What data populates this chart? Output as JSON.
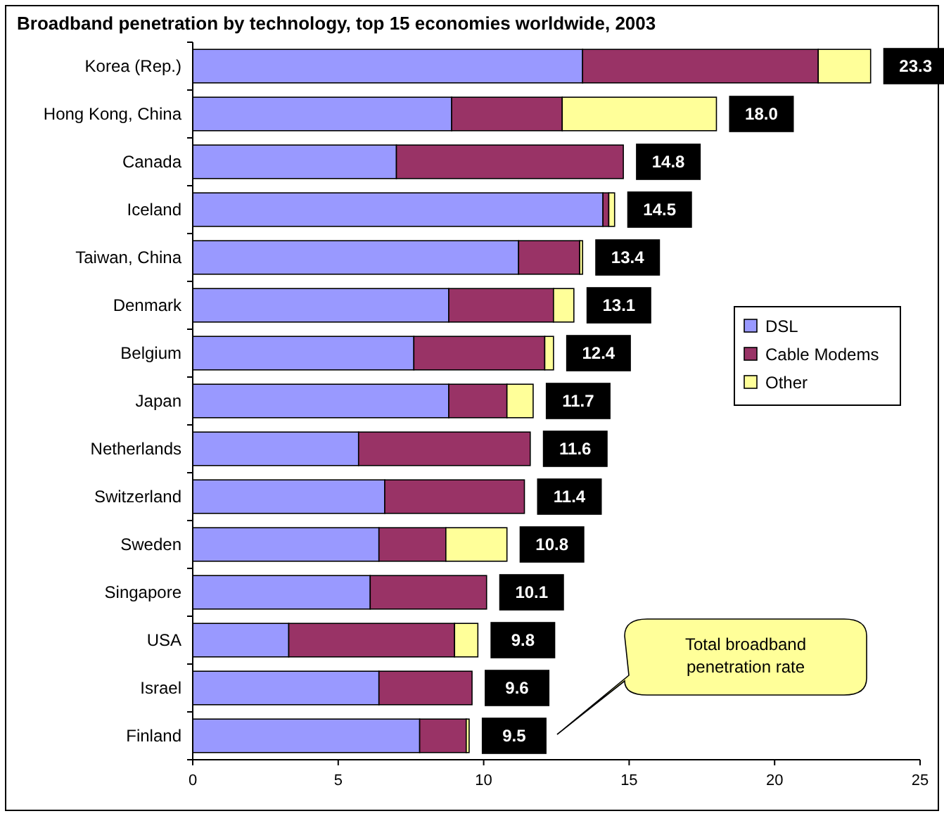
{
  "chart_data": {
    "type": "bar",
    "title": "Broadband penetration by technology, top 15 economies worldwide, 2003",
    "orientation": "horizontal",
    "stacked": true,
    "categories": [
      "Korea (Rep.)",
      "Hong Kong, China",
      "Canada",
      "Iceland",
      "Taiwan, China",
      "Denmark",
      "Belgium",
      "Japan",
      "Netherlands",
      "Switzerland",
      "Sweden",
      "Singapore",
      "USA",
      "Israel",
      "Finland"
    ],
    "series": [
      {
        "name": "DSL",
        "color": "#9999ff",
        "values": [
          13.4,
          8.9,
          7.0,
          14.1,
          11.2,
          8.8,
          7.6,
          8.8,
          5.7,
          6.6,
          6.4,
          6.1,
          3.3,
          6.4,
          7.8
        ]
      },
      {
        "name": "Cable Modems",
        "color": "#993366",
        "values": [
          8.1,
          3.8,
          7.8,
          0.2,
          2.1,
          3.6,
          4.5,
          2.0,
          5.9,
          4.8,
          2.3,
          4.0,
          5.7,
          3.2,
          1.6
        ]
      },
      {
        "name": "Other",
        "color": "#ffff99",
        "values": [
          1.8,
          5.3,
          0,
          0.2,
          0.1,
          0.7,
          0.3,
          0.9,
          0,
          0,
          2.1,
          0,
          0.8,
          0,
          0.1
        ]
      }
    ],
    "totals": [
      "23.3",
      "18.0",
      "14.8",
      "14.5",
      "13.4",
      "13.1",
      "12.4",
      "11.7",
      "11.6",
      "11.4",
      "10.8",
      "10.1",
      "9.8",
      "9.6",
      "9.5"
    ],
    "xlim": [
      0,
      25
    ],
    "xticks": [
      0,
      5,
      10,
      15,
      20,
      25
    ],
    "grid": false,
    "legend": "right",
    "annotations": [
      "Total broadband penetration rate"
    ]
  }
}
